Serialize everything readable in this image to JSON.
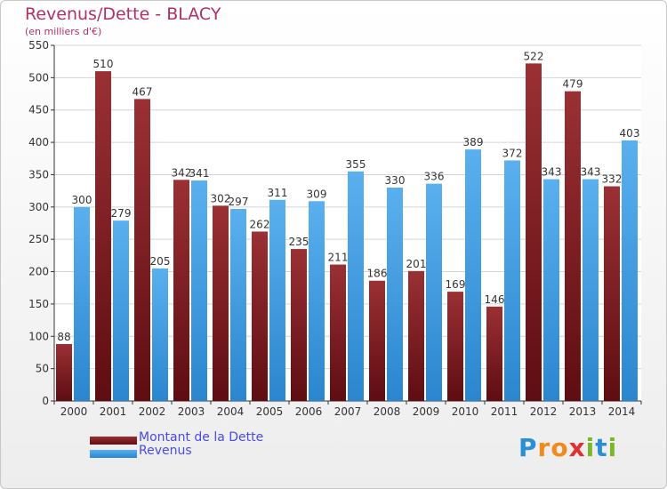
{
  "chart_data": {
    "type": "bar",
    "title": "Revenus/Dette - BLACY",
    "subtitle": "(en milliers d'€)",
    "categories": [
      "2000",
      "2001",
      "2002",
      "2003",
      "2004",
      "2005",
      "2006",
      "2007",
      "2008",
      "2009",
      "2010",
      "2011",
      "2012",
      "2013",
      "2014"
    ],
    "series": [
      {
        "name": "Montant de la Dette",
        "color": "#7b1a1f",
        "values": [
          88,
          510,
          467,
          342,
          302,
          262,
          235,
          211,
          186,
          201,
          169,
          146,
          522,
          479,
          332
        ]
      },
      {
        "name": "Revenus",
        "color": "#3d9be0",
        "values": [
          300,
          279,
          205,
          341,
          297,
          311,
          309,
          355,
          330,
          336,
          389,
          372,
          343,
          343,
          403
        ]
      }
    ],
    "ylim": [
      0,
      550
    ],
    "yticks": [
      0,
      50,
      100,
      150,
      200,
      250,
      300,
      350,
      400,
      450,
      500,
      550
    ],
    "grid": true,
    "legend": "bottom-left"
  },
  "logo": {
    "letters": [
      "P",
      "r",
      "o",
      "x",
      "i",
      "t",
      "i"
    ],
    "colors": [
      "#2a8fd6",
      "#f08a1c",
      "#f08a1c",
      "#e03030",
      "#7ab828",
      "#2a8fd6",
      "#7ab828"
    ]
  }
}
